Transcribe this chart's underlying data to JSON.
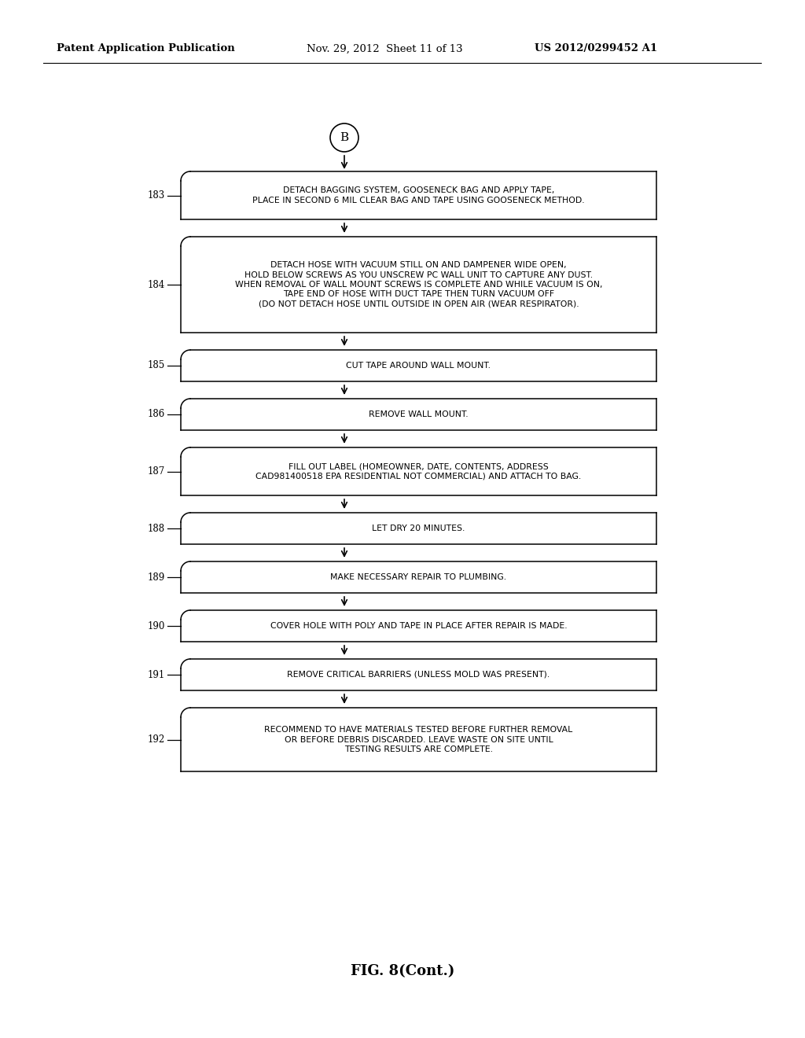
{
  "bg_color": "#ffffff",
  "header_left": "Patent Application Publication",
  "header_mid": "Nov. 29, 2012  Sheet 11 of 13",
  "header_right": "US 2012/0299452 A1",
  "footer": "FIG. 8(Cont.)",
  "connector_label": "B",
  "steps": [
    {
      "num": "183",
      "text": "DETACH BAGGING SYSTEM, GOOSENECK BAG AND APPLY TAPE,\nPLACE IN SECOND 6 MIL CLEAR BAG AND TAPE USING GOOSENECK METHOD.",
      "lines": 2
    },
    {
      "num": "184",
      "text": "DETACH HOSE WITH VACUUM STILL ON AND DAMPENER WIDE OPEN,\nHOLD BELOW SCREWS AS YOU UNSCREW PC WALL UNIT TO CAPTURE ANY DUST.\nWHEN REMOVAL OF WALL MOUNT SCREWS IS COMPLETE AND WHILE VACUUM IS ON,\nTAPE END OF HOSE WITH DUCT TAPE THEN TURN VACUUM OFF\n(DO NOT DETACH HOSE UNTIL OUTSIDE IN OPEN AIR (WEAR RESPIRATOR).",
      "lines": 5
    },
    {
      "num": "185",
      "text": "CUT TAPE AROUND WALL MOUNT.",
      "lines": 1
    },
    {
      "num": "186",
      "text": "REMOVE WALL MOUNT.",
      "lines": 1
    },
    {
      "num": "187",
      "text": "FILL OUT LABEL (HOMEOWNER, DATE, CONTENTS, ADDRESS\nCAD981400518 EPA RESIDENTIAL NOT COMMERCIAL) AND ATTACH TO BAG.",
      "lines": 2
    },
    {
      "num": "188",
      "text": "LET DRY 20 MINUTES.",
      "lines": 1
    },
    {
      "num": "189",
      "text": "MAKE NECESSARY REPAIR TO PLUMBING.",
      "lines": 1
    },
    {
      "num": "190",
      "text": "COVER HOLE WITH POLY AND TAPE IN PLACE AFTER REPAIR IS MADE.",
      "lines": 1
    },
    {
      "num": "191",
      "text": "REMOVE CRITICAL BARRIERS (UNLESS MOLD WAS PRESENT).",
      "lines": 1
    },
    {
      "num": "192",
      "text": "RECOMMEND TO HAVE MATERIALS TESTED BEFORE FURTHER REMOVAL\nOR BEFORE DEBRIS DISCARDED. LEAVE WASTE ON SITE UNTIL\nTESTING RESULTS ARE COMPLETE.",
      "lines": 3
    }
  ]
}
